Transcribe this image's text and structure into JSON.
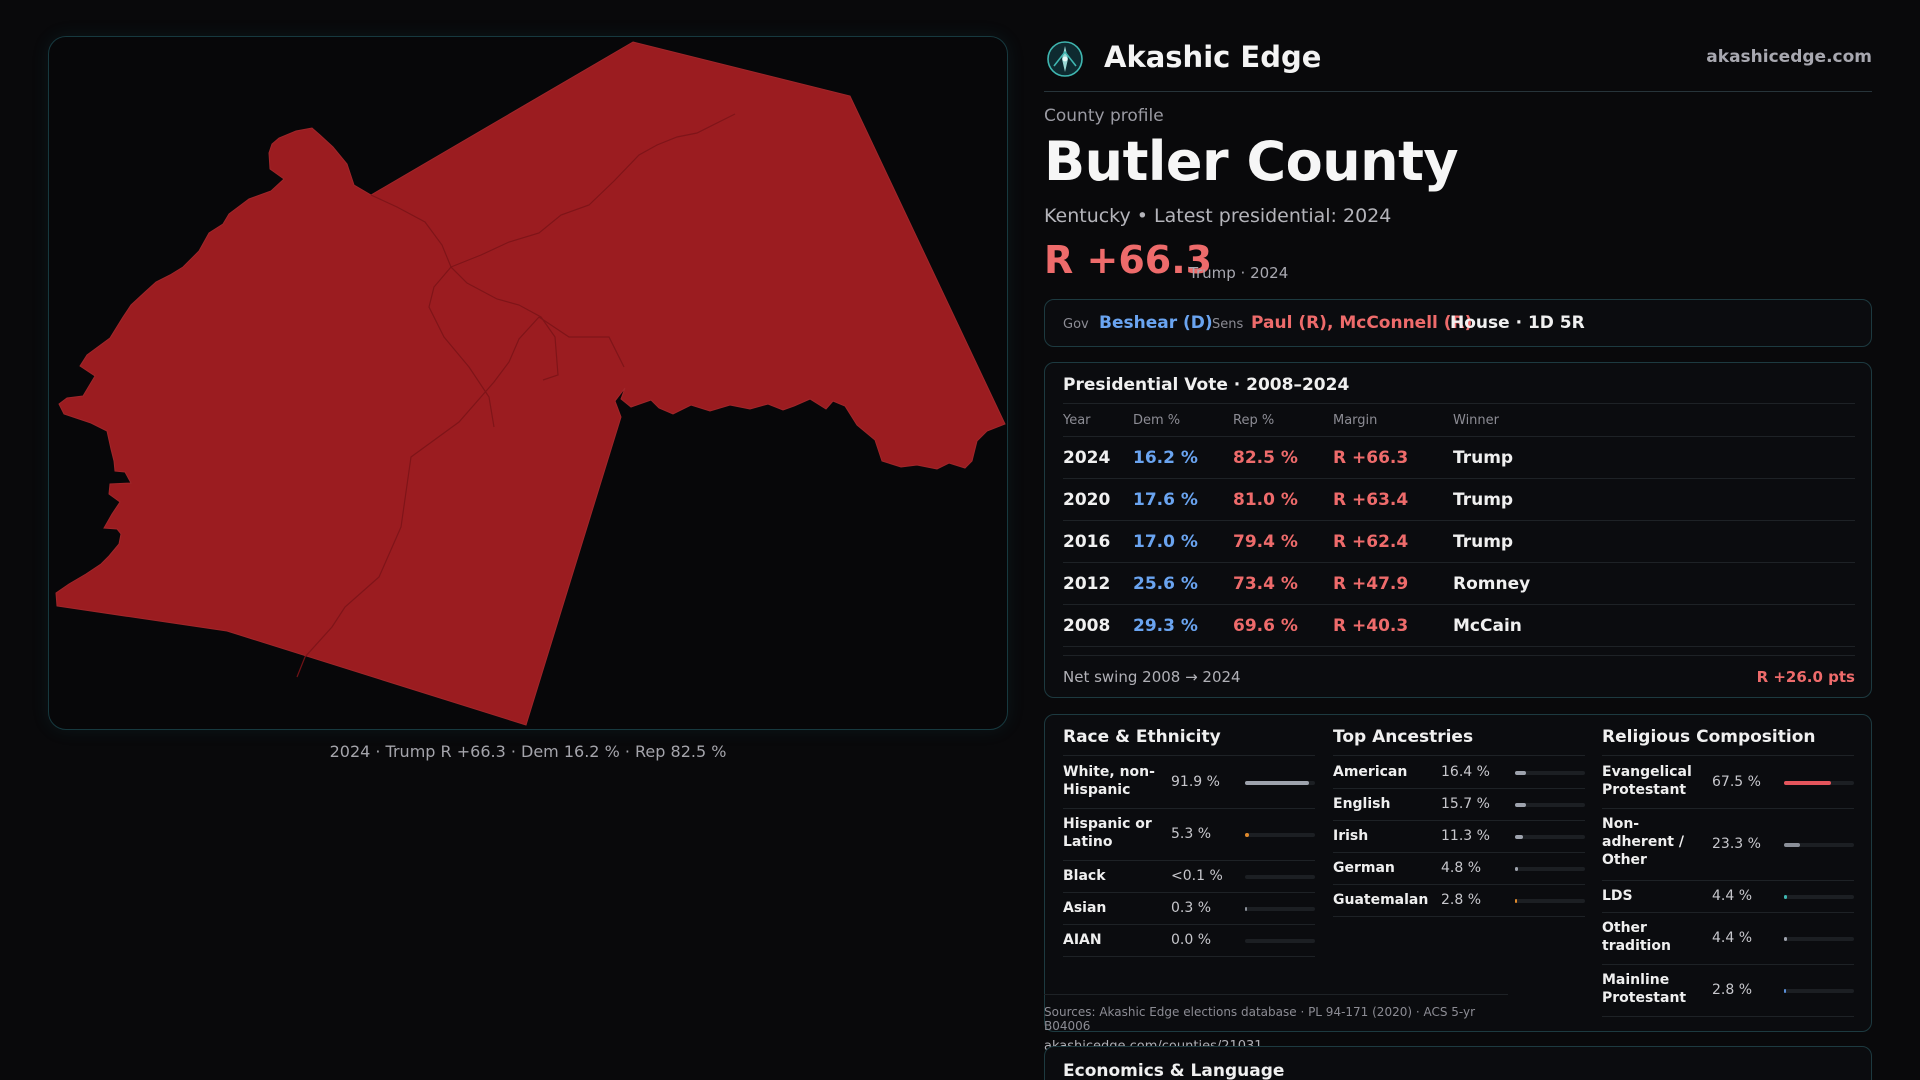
{
  "brand": {
    "name": "Akashic Edge",
    "site": "akashicedge.com",
    "logo_icon": "compass-rose-logo-icon"
  },
  "county": {
    "eyebrow": "County profile",
    "name": "Butler County",
    "subtitle": "Kentucky • Latest presidential: 2024",
    "margin": "R +66.3",
    "margin_note": "Trump · 2024"
  },
  "officials": {
    "gov_label": "Gov",
    "gov_value": "Beshear (D)",
    "sens_label": "Sens",
    "sens_value": "Paul (R), McConnell (R)",
    "house": "House · 1D 5R"
  },
  "map": {
    "fill_color": "#9b1c20",
    "caption": "2024 · Trump R +66.3 · Dem 16.2 % · Rep 82.5 %"
  },
  "presidential": {
    "title": "Presidential Vote · 2008–2024",
    "headers": [
      "Year",
      "Dem %",
      "Rep %",
      "Margin",
      "Winner"
    ],
    "rows": [
      {
        "year": "2024",
        "dem": "16.2 %",
        "rep": "82.5 %",
        "margin": "R +66.3",
        "winner": "Trump"
      },
      {
        "year": "2020",
        "dem": "17.6 %",
        "rep": "81.0 %",
        "margin": "R +63.4",
        "winner": "Trump"
      },
      {
        "year": "2016",
        "dem": "17.0 %",
        "rep": "79.4 %",
        "margin": "R +62.4",
        "winner": "Trump"
      },
      {
        "year": "2012",
        "dem": "25.6 %",
        "rep": "73.4 %",
        "margin": "R +47.9",
        "winner": "Romney"
      },
      {
        "year": "2008",
        "dem": "29.3 %",
        "rep": "69.6 %",
        "margin": "R +40.3",
        "winner": "McCain"
      }
    ],
    "swing_label": "Net swing 2008 → 2024",
    "swing_value": "R +26.0 pts"
  },
  "race": {
    "title": "Race & Ethnicity",
    "rows": [
      {
        "name": "White, non-Hispanic",
        "pct": "91.9 %",
        "share": 0.919,
        "color": "#9ea3ad"
      },
      {
        "name": "Hispanic or Latino",
        "pct": "5.3 %",
        "share": 0.053,
        "color": "#e08a2c"
      },
      {
        "name": "Black",
        "pct": "<0.1 %",
        "share": 0.0,
        "color": "#8a8f98"
      },
      {
        "name": "Asian",
        "pct": "0.3 %",
        "share": 0.003,
        "color": "#8a8f98"
      },
      {
        "name": "AIAN",
        "pct": "0.0 %",
        "share": 0.0,
        "color": "#8a8f98"
      }
    ]
  },
  "ancestry": {
    "title": "Top Ancestries",
    "rows": [
      {
        "name": "American",
        "pct": "16.4 %",
        "share": 0.164,
        "color": "#9ea3ad"
      },
      {
        "name": "English",
        "pct": "15.7 %",
        "share": 0.157,
        "color": "#9ea3ad"
      },
      {
        "name": "Irish",
        "pct": "11.3 %",
        "share": 0.113,
        "color": "#9ea3ad"
      },
      {
        "name": "German",
        "pct": "4.8 %",
        "share": 0.048,
        "color": "#9ea3ad"
      },
      {
        "name": "Guatemalan",
        "pct": "2.8 %",
        "share": 0.028,
        "color": "#e08a2c"
      }
    ]
  },
  "religion": {
    "title": "Religious Composition",
    "rows": [
      {
        "name": "Evangelical Protestant",
        "pct": "67.5 %",
        "share": 0.675,
        "color": "#e4555c"
      },
      {
        "name": "Non-adherent / Other",
        "pct": "23.3 %",
        "share": 0.233,
        "color": "#8a8f98"
      },
      {
        "name": "LDS",
        "pct": "4.4 %",
        "share": 0.044,
        "color": "#3fb6b0"
      },
      {
        "name": "Other tradition",
        "pct": "4.4 %",
        "share": 0.044,
        "color": "#9ea3ad"
      },
      {
        "name": "Mainline Protestant",
        "pct": "2.8 %",
        "share": 0.028,
        "color": "#5a8fd8"
      }
    ]
  },
  "sources": {
    "text": "Sources: Akashic Edge elections database · PL 94-171 (2020) · ACS 5-yr B04006",
    "link": "akashicedge.com/counties/21031"
  },
  "economics": {
    "title": "Economics & Language"
  }
}
